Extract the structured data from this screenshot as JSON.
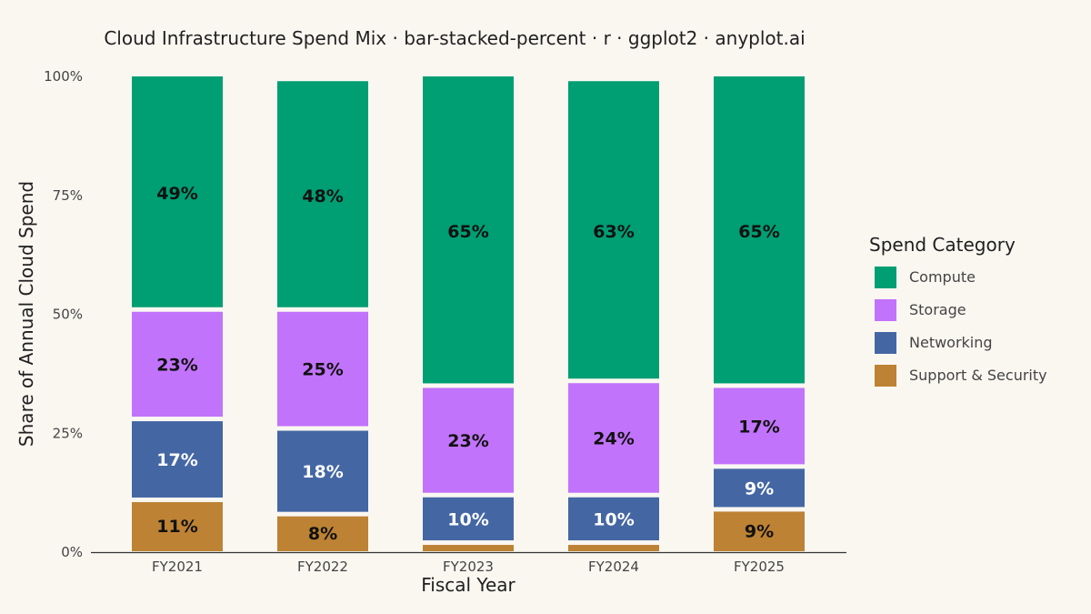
{
  "chart_data": {
    "type": "bar",
    "subtype": "stacked-percent",
    "title": "Cloud Infrastructure Spend Mix · bar-stacked-percent · r · ggplot2 · anyplot.ai",
    "xlabel": "Fiscal Year",
    "ylabel": "Share of Annual Cloud Spend",
    "ylim": [
      0,
      100
    ],
    "yticks": [
      "0%",
      "25%",
      "50%",
      "75%",
      "100%"
    ],
    "ytick_values": [
      0,
      25,
      50,
      75,
      100
    ],
    "grid": false,
    "legend_position": "right",
    "legend_title": "Spend Category",
    "categories": [
      "FY2021",
      "FY2022",
      "FY2023",
      "FY2024",
      "FY2025"
    ],
    "series": [
      {
        "name": "Support & Security",
        "color": "#bd8233",
        "label_color": "#111111",
        "values": [
          11,
          8,
          2,
          2,
          9
        ],
        "labels": [
          "11%",
          "8%",
          "",
          "",
          "9%"
        ]
      },
      {
        "name": "Networking",
        "color": "#4467a4",
        "label_color": "#ffffff",
        "values": [
          17,
          18,
          10,
          10,
          9
        ],
        "labels": [
          "17%",
          "18%",
          "10%",
          "10%",
          "9%"
        ]
      },
      {
        "name": "Storage",
        "color": "#c273fb",
        "label_color": "#111111",
        "values": [
          23,
          25,
          23,
          24,
          17
        ],
        "labels": [
          "23%",
          "25%",
          "23%",
          "24%",
          "17%"
        ]
      },
      {
        "name": "Compute",
        "color": "#009e73",
        "label_color": "#111111",
        "values": [
          49,
          48,
          65,
          63,
          65
        ],
        "labels": [
          "49%",
          "48%",
          "65%",
          "63%",
          "65%"
        ]
      }
    ],
    "legend_order": [
      "Compute",
      "Storage",
      "Networking",
      "Support & Security"
    ]
  }
}
